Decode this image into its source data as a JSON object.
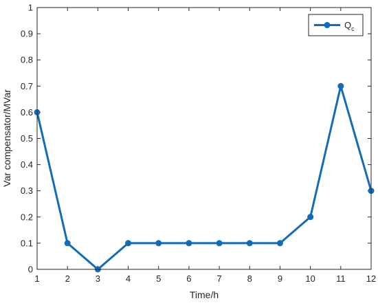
{
  "chart_data": {
    "type": "line",
    "x": [
      1,
      2,
      3,
      4,
      5,
      6,
      7,
      8,
      9,
      10,
      11,
      12
    ],
    "series": [
      {
        "name": "Qc",
        "legend_main": "Q",
        "legend_sub": "c",
        "values": [
          0.6,
          0.1,
          0.0,
          0.1,
          0.1,
          0.1,
          0.1,
          0.1,
          0.1,
          0.2,
          0.7,
          0.3
        ],
        "color": "#0F6CB8",
        "marker": "circle"
      }
    ],
    "xlabel": "Time/h",
    "ylabel": "Var compensator/MVar",
    "xlim": [
      1,
      12
    ],
    "ylim": [
      0,
      1
    ],
    "xticks": [
      1,
      2,
      3,
      4,
      5,
      6,
      7,
      8,
      9,
      10,
      11,
      12
    ],
    "xtick_labels": [
      "1",
      "2",
      "3",
      "4",
      "5",
      "6",
      "7",
      "8",
      "9",
      "10",
      "11",
      "12"
    ],
    "yticks": [
      0,
      0.1,
      0.2,
      0.3,
      0.4,
      0.5,
      0.6,
      0.7,
      0.8,
      0.9,
      1
    ],
    "ytick_labels": [
      "0",
      "0.1",
      "0.2",
      "0.3",
      "0.4",
      "0.5",
      "0.6",
      "0.7",
      "0.8",
      "0.9",
      "1"
    ],
    "grid": false,
    "legend_position": "top-right",
    "axis_color": "#262626"
  }
}
